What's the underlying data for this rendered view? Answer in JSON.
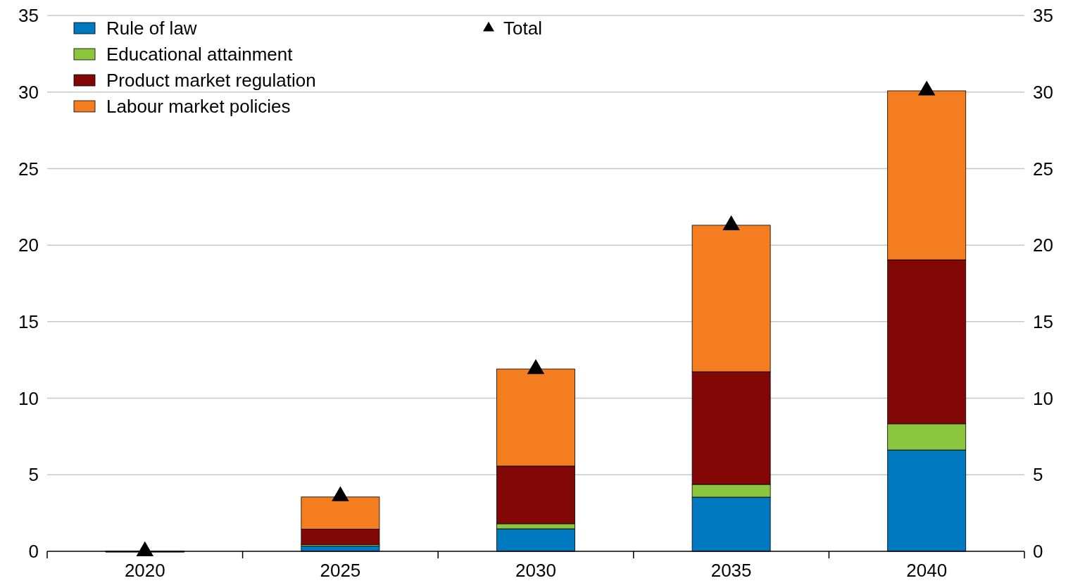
{
  "chart_data": {
    "type": "bar",
    "stacked": true,
    "categories": [
      "2020",
      "2025",
      "2030",
      "2035",
      "2040"
    ],
    "series": [
      {
        "name": "Rule of law",
        "color": "#0079c1",
        "values": [
          0,
          0.35,
          1.47,
          3.54,
          6.62
        ]
      },
      {
        "name": "Educational attainment",
        "color": "#8cc63f",
        "values": [
          0,
          0.1,
          0.33,
          0.83,
          1.71
        ]
      },
      {
        "name": "Product market regulation",
        "color": "#820808",
        "values": [
          0,
          1.0,
          3.77,
          7.36,
          10.71
        ]
      },
      {
        "name": "Labour market policies",
        "color": "#f47d20",
        "values": [
          0,
          2.1,
          6.34,
          9.57,
          11.04
        ]
      },
      {
        "name": "Total",
        "type": "scatter",
        "color": "#000000",
        "values": [
          0,
          3.6,
          11.9,
          21.3,
          30.1
        ]
      }
    ],
    "ylim": [
      0,
      35
    ],
    "yticks": [
      0,
      5,
      10,
      15,
      20,
      25,
      30,
      35
    ],
    "y2lim": [
      0,
      35
    ],
    "y2ticks": [
      0,
      5,
      10,
      15,
      20,
      25,
      30,
      35
    ],
    "grid": "y",
    "legend": "top left",
    "marker": "triangle"
  }
}
